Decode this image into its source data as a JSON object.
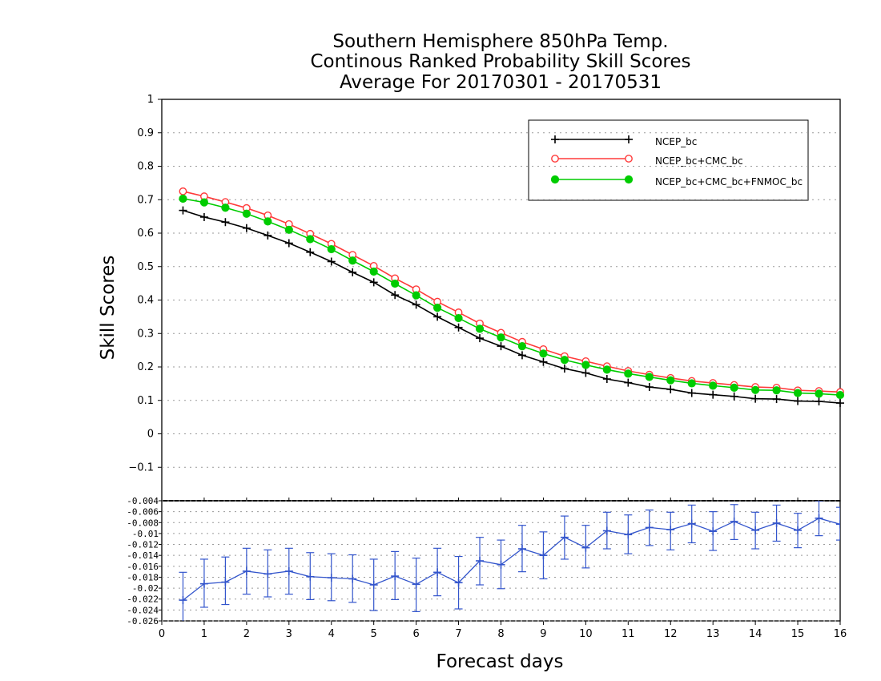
{
  "chart_data": [
    {
      "type": "line",
      "title_lines": [
        "Southern Hemisphere 850hPa Temp.",
        "Continous Ranked Probability Skill Scores",
        "Average For 20170301 - 20170531"
      ],
      "ylabel": "Skill Scores",
      "xlim": [
        0,
        16
      ],
      "ylim": [
        -0.2,
        1
      ],
      "x_ticks": [
        "0",
        "1",
        "2",
        "3",
        "4",
        "5",
        "6",
        "7",
        "8",
        "9",
        "10",
        "11",
        "12",
        "13",
        "14",
        "15",
        "16"
      ],
      "y_ticks": [
        "−0.1",
        "0",
        "0.1",
        "0.2",
        "0.3",
        "0.4",
        "0.5",
        "0.6",
        "0.7",
        "0.8",
        "0.9",
        "1"
      ],
      "grid": true,
      "legend_position": "top-right",
      "x": [
        0.5,
        1,
        1.5,
        2,
        2.5,
        3,
        3.5,
        4,
        4.5,
        5,
        5.5,
        6,
        6.5,
        7,
        7.5,
        8,
        8.5,
        9,
        9.5,
        10,
        10.5,
        11,
        11.5,
        12,
        12.5,
        13,
        13.5,
        14,
        14.5,
        15,
        15.5,
        16
      ],
      "series": [
        {
          "name": "NCEP_bc",
          "color": "#000000",
          "marker": "plus",
          "values": [
            0.668,
            0.648,
            0.633,
            0.615,
            0.593,
            0.57,
            0.543,
            0.515,
            0.483,
            0.453,
            0.415,
            0.386,
            0.35,
            0.318,
            0.286,
            0.262,
            0.235,
            0.215,
            0.195,
            0.182,
            0.164,
            0.153,
            0.14,
            0.133,
            0.122,
            0.117,
            0.112,
            0.105,
            0.104,
            0.098,
            0.097,
            0.092
          ]
        },
        {
          "name": "NCEP_bc+CMC_bc",
          "color": "#ff3a3a",
          "marker": "open-circle",
          "values": [
            0.725,
            0.71,
            0.693,
            0.675,
            0.653,
            0.627,
            0.598,
            0.568,
            0.535,
            0.502,
            0.465,
            0.432,
            0.395,
            0.363,
            0.33,
            0.302,
            0.275,
            0.253,
            0.232,
            0.217,
            0.202,
            0.188,
            0.177,
            0.167,
            0.158,
            0.152,
            0.146,
            0.14,
            0.138,
            0.13,
            0.128,
            0.125
          ]
        },
        {
          "name": "NCEP_bc+CMC_bc+FNMOC_bc",
          "color": "#00cc00",
          "marker": "filled-circle",
          "values": [
            0.703,
            0.692,
            0.676,
            0.658,
            0.635,
            0.61,
            0.582,
            0.552,
            0.518,
            0.485,
            0.449,
            0.414,
            0.377,
            0.346,
            0.314,
            0.288,
            0.262,
            0.24,
            0.221,
            0.206,
            0.192,
            0.18,
            0.17,
            0.16,
            0.151,
            0.144,
            0.138,
            0.131,
            0.13,
            0.122,
            0.12,
            0.116
          ]
        }
      ]
    },
    {
      "type": "line",
      "xlabel": "Forecast days",
      "xlim": [
        0,
        16
      ],
      "ylim": [
        -0.026,
        -0.004
      ],
      "y_ticks": [
        "-0.026",
        "-0.024",
        "-0.022",
        "-0.02",
        "-0.018",
        "-0.016",
        "-0.014",
        "-0.012",
        "-0.01",
        "-0.008",
        "-0.006",
        "-0.004"
      ],
      "grid": true,
      "series": [
        {
          "color": "#3355cc",
          "marker": "plus",
          "error_bars": true,
          "values": [
            -0.0222,
            -0.0192,
            -0.0189,
            -0.0169,
            -0.0174,
            -0.0169,
            -0.0179,
            -0.0181,
            -0.0183,
            -0.0194,
            -0.0178,
            -0.0193,
            -0.0171,
            -0.019,
            -0.015,
            -0.0157,
            -0.0128,
            -0.014,
            -0.0107,
            -0.0126,
            -0.0095,
            -0.0102,
            -0.0089,
            -0.0093,
            -0.0082,
            -0.0096,
            -0.0078,
            -0.0094,
            -0.0081,
            -0.0094,
            -0.0072,
            -0.0083
          ],
          "err_low": [
            -0.0272,
            -0.0235,
            -0.023,
            -0.0211,
            -0.0216,
            -0.0211,
            -0.0221,
            -0.0223,
            -0.0226,
            -0.0241,
            -0.0221,
            -0.0243,
            -0.0214,
            -0.0238,
            -0.0194,
            -0.0201,
            -0.017,
            -0.0183,
            -0.0147,
            -0.0163,
            -0.0128,
            -0.0137,
            -0.0122,
            -0.013,
            -0.0117,
            -0.0131,
            -0.0111,
            -0.0128,
            -0.0114,
            -0.0126,
            -0.0104,
            -0.0112
          ],
          "err_high": [
            -0.0171,
            -0.0147,
            -0.0143,
            -0.0127,
            -0.013,
            -0.0127,
            -0.0135,
            -0.0137,
            -0.0139,
            -0.0147,
            -0.0133,
            -0.0145,
            -0.0127,
            -0.0142,
            -0.0107,
            -0.0112,
            -0.0085,
            -0.0097,
            -0.0068,
            -0.0085,
            -0.0061,
            -0.0066,
            -0.0057,
            -0.0061,
            -0.0048,
            -0.006,
            -0.0047,
            -0.0061,
            -0.0048,
            -0.0063,
            -0.004,
            -0.0052
          ]
        }
      ]
    }
  ]
}
